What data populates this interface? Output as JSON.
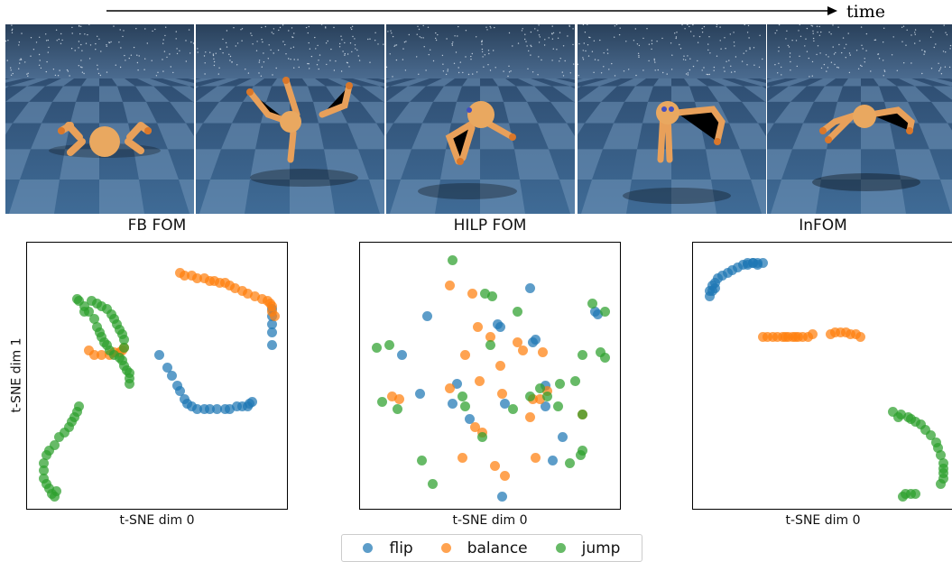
{
  "header": {
    "time_label": "time"
  },
  "colors": {
    "flip": "#1f77b4",
    "balance": "#ff7f0e",
    "jump": "#2ca02c"
  },
  "legend": [
    {
      "key": "flip",
      "label": "flip"
    },
    {
      "key": "balance",
      "label": "balance"
    },
    {
      "key": "jump",
      "label": "jump"
    }
  ],
  "frames": [
    {
      "pose": "lying-flat"
    },
    {
      "pose": "legs-up"
    },
    {
      "pose": "flipping"
    },
    {
      "pose": "standing"
    },
    {
      "pose": "leaning"
    }
  ],
  "chart_data": [
    {
      "type": "scatter",
      "title": "FB FOM",
      "xlabel": "t-SNE dim 0",
      "ylabel": "t-SNE dim 1",
      "grid": false,
      "series": [
        {
          "name": "flip",
          "points": [
            [
              0.51,
              0.58
            ],
            [
              0.54,
              0.53
            ],
            [
              0.56,
              0.5
            ],
            [
              0.58,
              0.46
            ],
            [
              0.59,
              0.44
            ],
            [
              0.61,
              0.41
            ],
            [
              0.62,
              0.39
            ],
            [
              0.64,
              0.38
            ],
            [
              0.66,
              0.37
            ],
            [
              0.69,
              0.37
            ],
            [
              0.71,
              0.37
            ],
            [
              0.74,
              0.37
            ],
            [
              0.77,
              0.37
            ],
            [
              0.79,
              0.37
            ],
            [
              0.82,
              0.38
            ],
            [
              0.84,
              0.38
            ],
            [
              0.86,
              0.38
            ],
            [
              0.87,
              0.39
            ],
            [
              0.88,
              0.4
            ],
            [
              0.96,
              0.62
            ],
            [
              0.96,
              0.67
            ],
            [
              0.96,
              0.7
            ],
            [
              0.96,
              0.73
            ],
            [
              0.96,
              0.76
            ]
          ]
        },
        {
          "name": "balance",
          "points": [
            [
              0.59,
              0.9
            ],
            [
              0.61,
              0.89
            ],
            [
              0.64,
              0.89
            ],
            [
              0.66,
              0.88
            ],
            [
              0.69,
              0.88
            ],
            [
              0.71,
              0.87
            ],
            [
              0.73,
              0.87
            ],
            [
              0.75,
              0.86
            ],
            [
              0.77,
              0.86
            ],
            [
              0.79,
              0.85
            ],
            [
              0.81,
              0.84
            ],
            [
              0.84,
              0.83
            ],
            [
              0.86,
              0.82
            ],
            [
              0.89,
              0.81
            ],
            [
              0.92,
              0.8
            ],
            [
              0.94,
              0.79
            ],
            [
              0.95,
              0.78
            ],
            [
              0.96,
              0.77
            ],
            [
              0.96,
              0.75
            ],
            [
              0.97,
              0.73
            ],
            [
              0.23,
              0.6
            ],
            [
              0.25,
              0.58
            ],
            [
              0.28,
              0.58
            ],
            [
              0.31,
              0.58
            ],
            [
              0.33,
              0.59
            ],
            [
              0.35,
              0.59
            ],
            [
              0.36,
              0.6
            ],
            [
              0.37,
              0.61
            ]
          ]
        },
        {
          "name": "jump",
          "points": [
            [
              0.24,
              0.79
            ],
            [
              0.26,
              0.78
            ],
            [
              0.28,
              0.77
            ],
            [
              0.3,
              0.76
            ],
            [
              0.32,
              0.74
            ],
            [
              0.33,
              0.72
            ],
            [
              0.34,
              0.7
            ],
            [
              0.35,
              0.68
            ],
            [
              0.36,
              0.66
            ],
            [
              0.37,
              0.64
            ],
            [
              0.37,
              0.61
            ],
            [
              0.21,
              0.75
            ],
            [
              0.18,
              0.8
            ],
            [
              0.19,
              0.79
            ],
            [
              0.21,
              0.77
            ],
            [
              0.23,
              0.75
            ],
            [
              0.25,
              0.72
            ],
            [
              0.26,
              0.69
            ],
            [
              0.27,
              0.67
            ],
            [
              0.28,
              0.65
            ],
            [
              0.29,
              0.63
            ],
            [
              0.3,
              0.62
            ],
            [
              0.31,
              0.6
            ],
            [
              0.33,
              0.58
            ],
            [
              0.35,
              0.57
            ],
            [
              0.36,
              0.56
            ],
            [
              0.37,
              0.54
            ],
            [
              0.38,
              0.52
            ],
            [
              0.39,
              0.51
            ],
            [
              0.39,
              0.49
            ],
            [
              0.39,
              0.47
            ],
            [
              0.19,
              0.38
            ],
            [
              0.18,
              0.36
            ],
            [
              0.17,
              0.34
            ],
            [
              0.16,
              0.32
            ],
            [
              0.15,
              0.3
            ],
            [
              0.13,
              0.28
            ],
            [
              0.11,
              0.26
            ],
            [
              0.09,
              0.23
            ],
            [
              0.07,
              0.21
            ],
            [
              0.06,
              0.19
            ],
            [
              0.05,
              0.16
            ],
            [
              0.05,
              0.13
            ],
            [
              0.05,
              0.1
            ],
            [
              0.06,
              0.08
            ],
            [
              0.07,
              0.06
            ],
            [
              0.08,
              0.04
            ],
            [
              0.09,
              0.03
            ],
            [
              0.1,
              0.05
            ]
          ]
        }
      ]
    },
    {
      "type": "scatter",
      "title": "HILP FOM",
      "xlabel": "t-SNE dim 0",
      "ylabel": "",
      "grid": false,
      "series": [
        {
          "name": "flip",
          "points": [
            [
              0.66,
              0.84
            ],
            [
              0.25,
              0.73
            ],
            [
              0.53,
              0.7
            ],
            [
              0.68,
              0.64
            ],
            [
              0.15,
              0.58
            ],
            [
              0.92,
              0.75
            ],
            [
              0.93,
              0.74
            ],
            [
              0.54,
              0.69
            ],
            [
              0.67,
              0.63
            ],
            [
              0.22,
              0.43
            ],
            [
              0.37,
              0.47
            ],
            [
              0.56,
              0.39
            ],
            [
              0.42,
              0.33
            ],
            [
              0.72,
              0.46
            ],
            [
              0.79,
              0.26
            ],
            [
              0.75,
              0.17
            ],
            [
              0.55,
              0.03
            ],
            [
              0.35,
              0.39
            ],
            [
              0.72,
              0.38
            ]
          ]
        },
        {
          "name": "balance",
          "points": [
            [
              0.34,
              0.85
            ],
            [
              0.43,
              0.82
            ],
            [
              0.45,
              0.69
            ],
            [
              0.5,
              0.65
            ],
            [
              0.4,
              0.58
            ],
            [
              0.54,
              0.54
            ],
            [
              0.61,
              0.63
            ],
            [
              0.63,
              0.6
            ],
            [
              0.71,
              0.59
            ],
            [
              0.34,
              0.45
            ],
            [
              0.46,
              0.48
            ],
            [
              0.55,
              0.43
            ],
            [
              0.67,
              0.41
            ],
            [
              0.73,
              0.44
            ],
            [
              0.66,
              0.34
            ],
            [
              0.44,
              0.3
            ],
            [
              0.47,
              0.28
            ],
            [
              0.68,
              0.18
            ],
            [
              0.39,
              0.18
            ],
            [
              0.52,
              0.15
            ],
            [
              0.56,
              0.11
            ],
            [
              0.7,
              0.41
            ],
            [
              0.87,
              0.35
            ],
            [
              0.11,
              0.42
            ],
            [
              0.14,
              0.41
            ]
          ]
        },
        {
          "name": "jump",
          "points": [
            [
              0.35,
              0.95
            ],
            [
              0.48,
              0.82
            ],
            [
              0.51,
              0.81
            ],
            [
              0.61,
              0.75
            ],
            [
              0.91,
              0.78
            ],
            [
              0.96,
              0.75
            ],
            [
              0.05,
              0.61
            ],
            [
              0.1,
              0.62
            ],
            [
              0.5,
              0.62
            ],
            [
              0.87,
              0.58
            ],
            [
              0.94,
              0.59
            ],
            [
              0.96,
              0.57
            ],
            [
              0.07,
              0.4
            ],
            [
              0.13,
              0.37
            ],
            [
              0.39,
              0.42
            ],
            [
              0.4,
              0.38
            ],
            [
              0.47,
              0.26
            ],
            [
              0.59,
              0.37
            ],
            [
              0.66,
              0.42
            ],
            [
              0.77,
              0.38
            ],
            [
              0.78,
              0.47
            ],
            [
              0.84,
              0.48
            ],
            [
              0.87,
              0.35
            ],
            [
              0.87,
              0.21
            ],
            [
              0.86,
              0.19
            ],
            [
              0.82,
              0.16
            ],
            [
              0.23,
              0.17
            ],
            [
              0.27,
              0.08
            ],
            [
              0.7,
              0.45
            ],
            [
              0.73,
              0.42
            ]
          ]
        }
      ]
    },
    {
      "type": "scatter",
      "title": "InFOM",
      "xlabel": "t-SNE dim 0",
      "ylabel": "",
      "grid": false,
      "series": [
        {
          "name": "flip",
          "points": [
            [
              0.05,
              0.81
            ],
            [
              0.05,
              0.83
            ],
            [
              0.06,
              0.85
            ],
            [
              0.07,
              0.86
            ],
            [
              0.08,
              0.88
            ],
            [
              0.1,
              0.89
            ],
            [
              0.12,
              0.9
            ],
            [
              0.14,
              0.91
            ],
            [
              0.16,
              0.92
            ],
            [
              0.18,
              0.93
            ],
            [
              0.2,
              0.93
            ],
            [
              0.22,
              0.94
            ],
            [
              0.24,
              0.94
            ],
            [
              0.26,
              0.94
            ],
            [
              0.24,
              0.93
            ],
            [
              0.22,
              0.94
            ],
            [
              0.2,
              0.94
            ],
            [
              0.06,
              0.83
            ],
            [
              0.07,
              0.84
            ]
          ]
        },
        {
          "name": "balance",
          "points": [
            [
              0.26,
              0.65
            ],
            [
              0.28,
              0.65
            ],
            [
              0.3,
              0.65
            ],
            [
              0.32,
              0.65
            ],
            [
              0.34,
              0.65
            ],
            [
              0.36,
              0.65
            ],
            [
              0.38,
              0.65
            ],
            [
              0.4,
              0.65
            ],
            [
              0.42,
              0.65
            ],
            [
              0.44,
              0.65
            ],
            [
              0.46,
              0.66
            ],
            [
              0.53,
              0.66
            ],
            [
              0.55,
              0.67
            ],
            [
              0.57,
              0.67
            ],
            [
              0.59,
              0.67
            ],
            [
              0.61,
              0.66
            ],
            [
              0.63,
              0.66
            ],
            [
              0.65,
              0.65
            ],
            [
              0.35,
              0.65
            ],
            [
              0.39,
              0.65
            ]
          ]
        },
        {
          "name": "jump",
          "points": [
            [
              0.78,
              0.36
            ],
            [
              0.81,
              0.35
            ],
            [
              0.84,
              0.34
            ],
            [
              0.87,
              0.32
            ],
            [
              0.89,
              0.31
            ],
            [
              0.91,
              0.29
            ],
            [
              0.93,
              0.27
            ],
            [
              0.95,
              0.24
            ],
            [
              0.96,
              0.22
            ],
            [
              0.97,
              0.19
            ],
            [
              0.98,
              0.16
            ],
            [
              0.98,
              0.14
            ],
            [
              0.98,
              0.12
            ],
            [
              0.98,
              0.1
            ],
            [
              0.97,
              0.08
            ],
            [
              0.82,
              0.03
            ],
            [
              0.83,
              0.04
            ],
            [
              0.85,
              0.04
            ],
            [
              0.87,
              0.04
            ],
            [
              0.8,
              0.34
            ],
            [
              0.85,
              0.33
            ]
          ]
        }
      ]
    }
  ]
}
